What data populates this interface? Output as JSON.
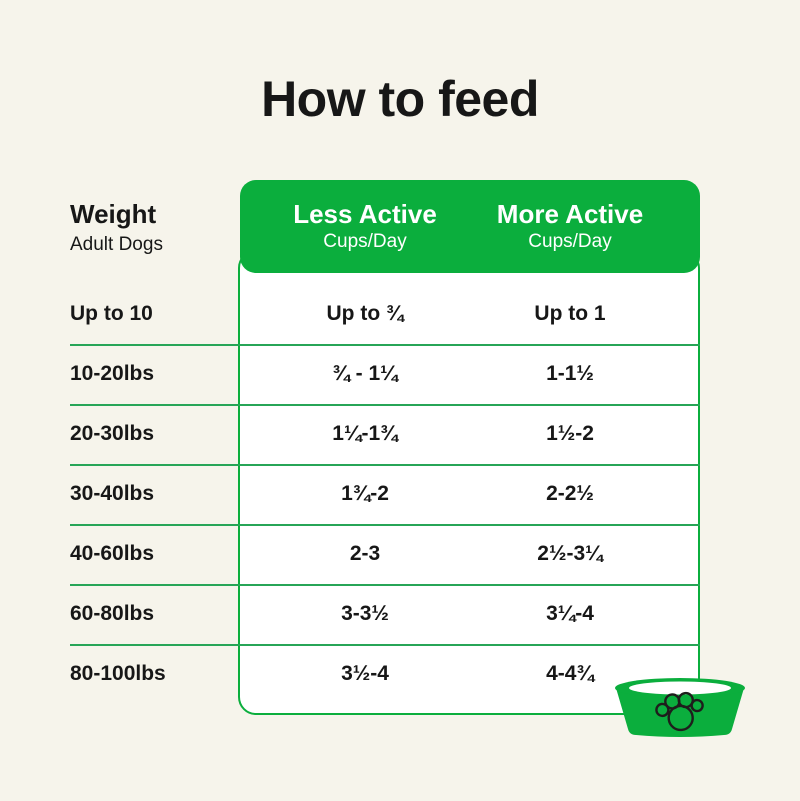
{
  "colors": {
    "green": "#0BAE3D",
    "divider": "#27A557",
    "background": "#F6F4EB",
    "text": "#171717",
    "white": "#FFFFFF",
    "paw": "#1E1E1C"
  },
  "title": "How to feed",
  "table": {
    "weight_header": {
      "title": "Weight",
      "subtitle": "Adult Dogs"
    },
    "columns": [
      {
        "title": "Less Active",
        "subtitle": "Cups/Day"
      },
      {
        "title": "More Active",
        "subtitle": "Cups/Day"
      }
    ],
    "rows": [
      {
        "weight": "Up to 10",
        "less_active": "Up to ¾",
        "more_active": "Up to 1"
      },
      {
        "weight": "10-20lbs",
        "less_active": "¾ - 1¼",
        "more_active": "1-1½"
      },
      {
        "weight": "20-30lbs",
        "less_active": "1¼-1¾",
        "more_active": "1½-2"
      },
      {
        "weight": "30-40lbs",
        "less_active": "1¾-2",
        "more_active": "2-2½"
      },
      {
        "weight": "40-60lbs",
        "less_active": "2-3",
        "more_active": "2½-3¼"
      },
      {
        "weight": "60-80lbs",
        "less_active": "3-3½",
        "more_active": "3¼-4"
      },
      {
        "weight": "80-100lbs",
        "less_active": "3½-4",
        "more_active": "4-4¾"
      }
    ]
  },
  "icons": {
    "bowl": "dog-bowl-icon",
    "paw": "paw-print-icon"
  }
}
